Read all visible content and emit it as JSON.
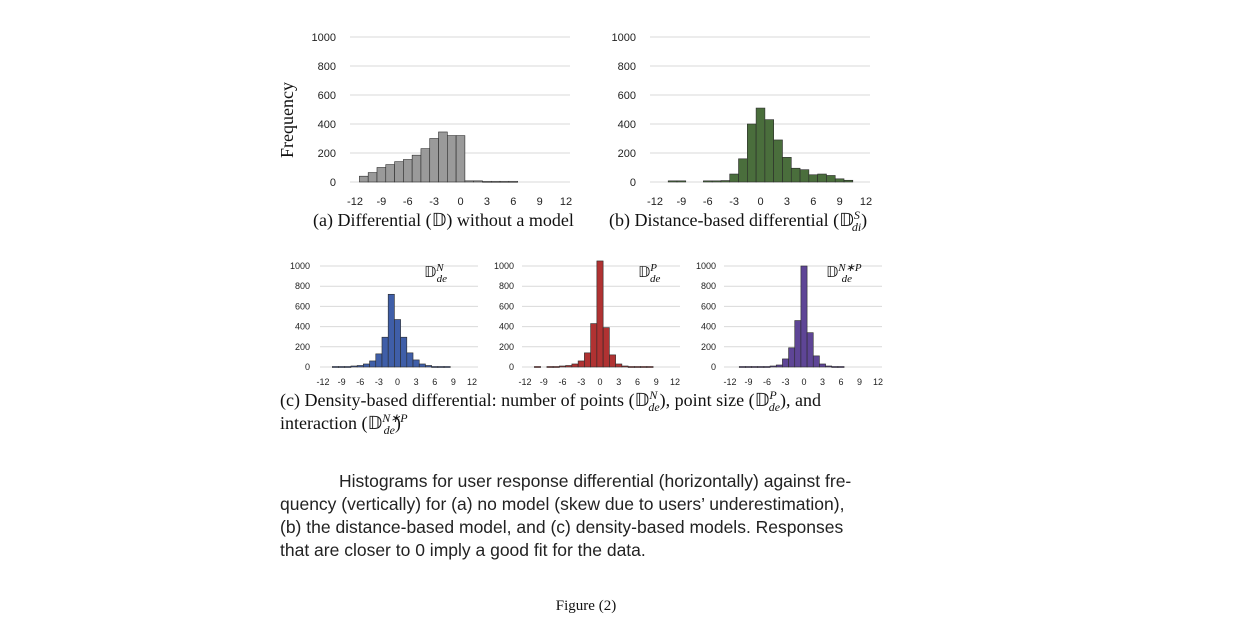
{
  "ylabel": "Frequency",
  "chart_data": [
    {
      "type": "bar",
      "panel": "a",
      "caption": "(a) Differential (𝔻) without a model",
      "ylim": [
        0,
        1000
      ],
      "yticks": [
        "1000",
        "800",
        "600",
        "400",
        "200",
        "0"
      ],
      "xticks": [
        "-12",
        "-9",
        "-6",
        "-3",
        "0",
        "3",
        "6",
        "9",
        "12"
      ],
      "xlim": [
        -12,
        12
      ],
      "bin_start": -11,
      "bin_width": 1,
      "values": [
        40,
        65,
        100,
        120,
        140,
        155,
        185,
        230,
        300,
        345,
        320,
        320,
        8,
        8,
        5,
        5,
        5,
        5,
        0,
        0
      ],
      "color": "#9a9a9a",
      "grid": true
    },
    {
      "type": "bar",
      "panel": "b",
      "caption": "(b) Distance-based differential (𝔻",
      "caption_sup": "S",
      "caption_sub": "di",
      "caption_end": ")",
      "ylim": [
        0,
        1000
      ],
      "yticks": [
        "1000",
        "800",
        "600",
        "400",
        "200",
        "0"
      ],
      "xticks": [
        "-12",
        "-9",
        "-6",
        "-3",
        "0",
        "3",
        "6",
        "9",
        "12"
      ],
      "xlim": [
        -12,
        12
      ],
      "bin_start": -11,
      "bin_width": 1,
      "values": [
        0,
        8,
        8,
        0,
        0,
        8,
        8,
        10,
        55,
        160,
        400,
        510,
        430,
        290,
        170,
        95,
        85,
        50,
        55,
        45,
        22,
        12
      ],
      "color": "#4a6e3c",
      "grid": true
    },
    {
      "type": "bar",
      "panel": "c1",
      "legend_base": "𝔻",
      "legend_sup": "N",
      "legend_sub": "de",
      "ylim": [
        0,
        1000
      ],
      "yticks": [
        "1000",
        "800",
        "600",
        "400",
        "200",
        "0"
      ],
      "xticks": [
        "-12",
        "-9",
        "-6",
        "-3",
        "0",
        "3",
        "6",
        "9",
        "12"
      ],
      "xlim": [
        -12,
        12
      ],
      "bin_start": -10,
      "bin_width": 1,
      "values": [
        5,
        5,
        5,
        10,
        15,
        30,
        60,
        130,
        295,
        720,
        470,
        295,
        140,
        70,
        30,
        15,
        5,
        5,
        5,
        0
      ],
      "color": "#3f5ea8",
      "grid": true
    },
    {
      "type": "bar",
      "panel": "c2",
      "legend_base": "𝔻",
      "legend_sup": "P",
      "legend_sub": "de",
      "ylim": [
        0,
        1000
      ],
      "yticks": [
        "1000",
        "800",
        "600",
        "400",
        "200",
        "0"
      ],
      "xticks": [
        "-12",
        "-9",
        "-6",
        "-3",
        "0",
        "3",
        "6",
        "9",
        "12"
      ],
      "xlim": [
        -12,
        12
      ],
      "bin_start": -10,
      "bin_width": 1,
      "values": [
        5,
        0,
        5,
        5,
        10,
        15,
        30,
        60,
        140,
        430,
        1050,
        390,
        120,
        30,
        10,
        5,
        5,
        5,
        5,
        0
      ],
      "color": "#b03232",
      "grid": true
    },
    {
      "type": "bar",
      "panel": "c3",
      "legend_base": "𝔻",
      "legend_sup": "N∗P",
      "legend_sub": "de",
      "ylim": [
        0,
        1000
      ],
      "yticks": [
        "1000",
        "800",
        "600",
        "400",
        "200",
        "0"
      ],
      "xticks": [
        "-12",
        "-9",
        "-6",
        "-3",
        "0",
        "3",
        "6",
        "9",
        "12"
      ],
      "xlim": [
        -12,
        12
      ],
      "bin_start": -10,
      "bin_width": 1,
      "values": [
        5,
        5,
        5,
        5,
        5,
        10,
        20,
        80,
        190,
        460,
        1000,
        340,
        110,
        30,
        10,
        5,
        5,
        0,
        0,
        0
      ],
      "color": "#5e4596",
      "grid": true
    }
  ],
  "caption_c": {
    "line1_a": "(c) Density-based differential: number of points (𝔻",
    "line1_a_sup": "N",
    "line1_a_sub": "de",
    "line1_b": "), point size (𝔻",
    "line1_b_sup": "P",
    "line1_b_sub": "de",
    "line1_c": "), and",
    "line2_a": "interaction (𝔻",
    "line2_a_sup": "N∗P",
    "line2_a_sub": "de",
    "line2_b": ")"
  },
  "description_lines": [
    "Histograms for user response differential (horizontally) against fre-",
    "quency (vertically) for (a) no model (skew due to users’ underestimation),",
    "(b) the distance-based model, and (c) density-based models. Responses",
    "that are closer to 0 imply a good fit for the data."
  ],
  "figure_label": "Figure (2)"
}
